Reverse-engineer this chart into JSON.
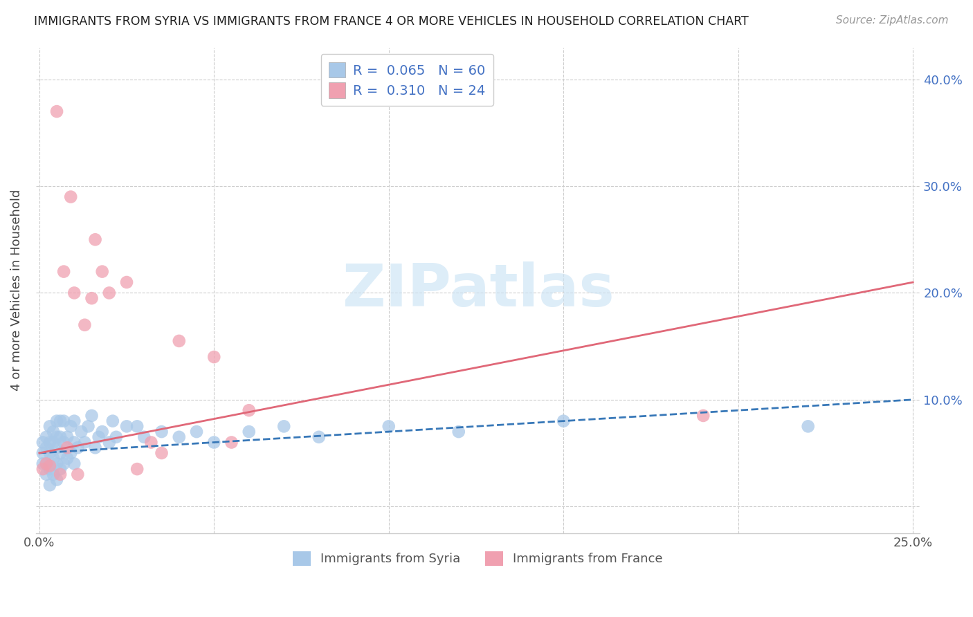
{
  "title": "IMMIGRANTS FROM SYRIA VS IMMIGRANTS FROM FRANCE 4 OR MORE VEHICLES IN HOUSEHOLD CORRELATION CHART",
  "source": "Source: ZipAtlas.com",
  "ylabel": "4 or more Vehicles in Household",
  "xlim": [
    -0.001,
    0.252
  ],
  "ylim": [
    -0.025,
    0.43
  ],
  "xticks": [
    0.0,
    0.05,
    0.1,
    0.15,
    0.2,
    0.25
  ],
  "yticks": [
    0.0,
    0.1,
    0.2,
    0.3,
    0.4
  ],
  "r_syria": 0.065,
  "n_syria": 60,
  "r_france": 0.31,
  "n_france": 24,
  "syria_color": "#a8c8e8",
  "france_color": "#f0a0b0",
  "syria_line_color": "#3878b8",
  "france_line_color": "#e06878",
  "legend_label_syria": "Immigrants from Syria",
  "legend_label_france": "Immigrants from France",
  "syria_scatter_x": [
    0.001,
    0.001,
    0.001,
    0.002,
    0.002,
    0.002,
    0.002,
    0.003,
    0.003,
    0.003,
    0.003,
    0.003,
    0.004,
    0.004,
    0.004,
    0.004,
    0.005,
    0.005,
    0.005,
    0.005,
    0.005,
    0.006,
    0.006,
    0.006,
    0.006,
    0.007,
    0.007,
    0.007,
    0.008,
    0.008,
    0.009,
    0.009,
    0.01,
    0.01,
    0.01,
    0.011,
    0.012,
    0.013,
    0.014,
    0.015,
    0.016,
    0.017,
    0.018,
    0.02,
    0.021,
    0.022,
    0.025,
    0.028,
    0.03,
    0.035,
    0.04,
    0.045,
    0.05,
    0.06,
    0.07,
    0.08,
    0.1,
    0.12,
    0.15,
    0.22
  ],
  "syria_scatter_y": [
    0.04,
    0.05,
    0.06,
    0.03,
    0.04,
    0.055,
    0.065,
    0.02,
    0.035,
    0.05,
    0.06,
    0.075,
    0.03,
    0.045,
    0.06,
    0.07,
    0.025,
    0.04,
    0.055,
    0.065,
    0.08,
    0.035,
    0.05,
    0.065,
    0.08,
    0.04,
    0.06,
    0.08,
    0.045,
    0.065,
    0.05,
    0.075,
    0.04,
    0.06,
    0.08,
    0.055,
    0.07,
    0.06,
    0.075,
    0.085,
    0.055,
    0.065,
    0.07,
    0.06,
    0.08,
    0.065,
    0.075,
    0.075,
    0.065,
    0.07,
    0.065,
    0.07,
    0.06,
    0.07,
    0.075,
    0.065,
    0.075,
    0.07,
    0.08,
    0.075
  ],
  "france_scatter_x": [
    0.001,
    0.002,
    0.003,
    0.005,
    0.006,
    0.007,
    0.008,
    0.009,
    0.01,
    0.011,
    0.013,
    0.015,
    0.016,
    0.018,
    0.02,
    0.025,
    0.028,
    0.032,
    0.035,
    0.04,
    0.05,
    0.055,
    0.06,
    0.19
  ],
  "france_scatter_y": [
    0.035,
    0.04,
    0.038,
    0.37,
    0.03,
    0.22,
    0.055,
    0.29,
    0.2,
    0.03,
    0.17,
    0.195,
    0.25,
    0.22,
    0.2,
    0.21,
    0.035,
    0.06,
    0.05,
    0.155,
    0.14,
    0.06,
    0.09,
    0.085
  ],
  "background_color": "#ffffff",
  "grid_color": "#cccccc",
  "watermark_text": "ZIPatlas",
  "watermark_color": "#cce4f5",
  "label_color_blue": "#4472c4",
  "label_color_dark": "#333333",
  "source_color": "#999999"
}
